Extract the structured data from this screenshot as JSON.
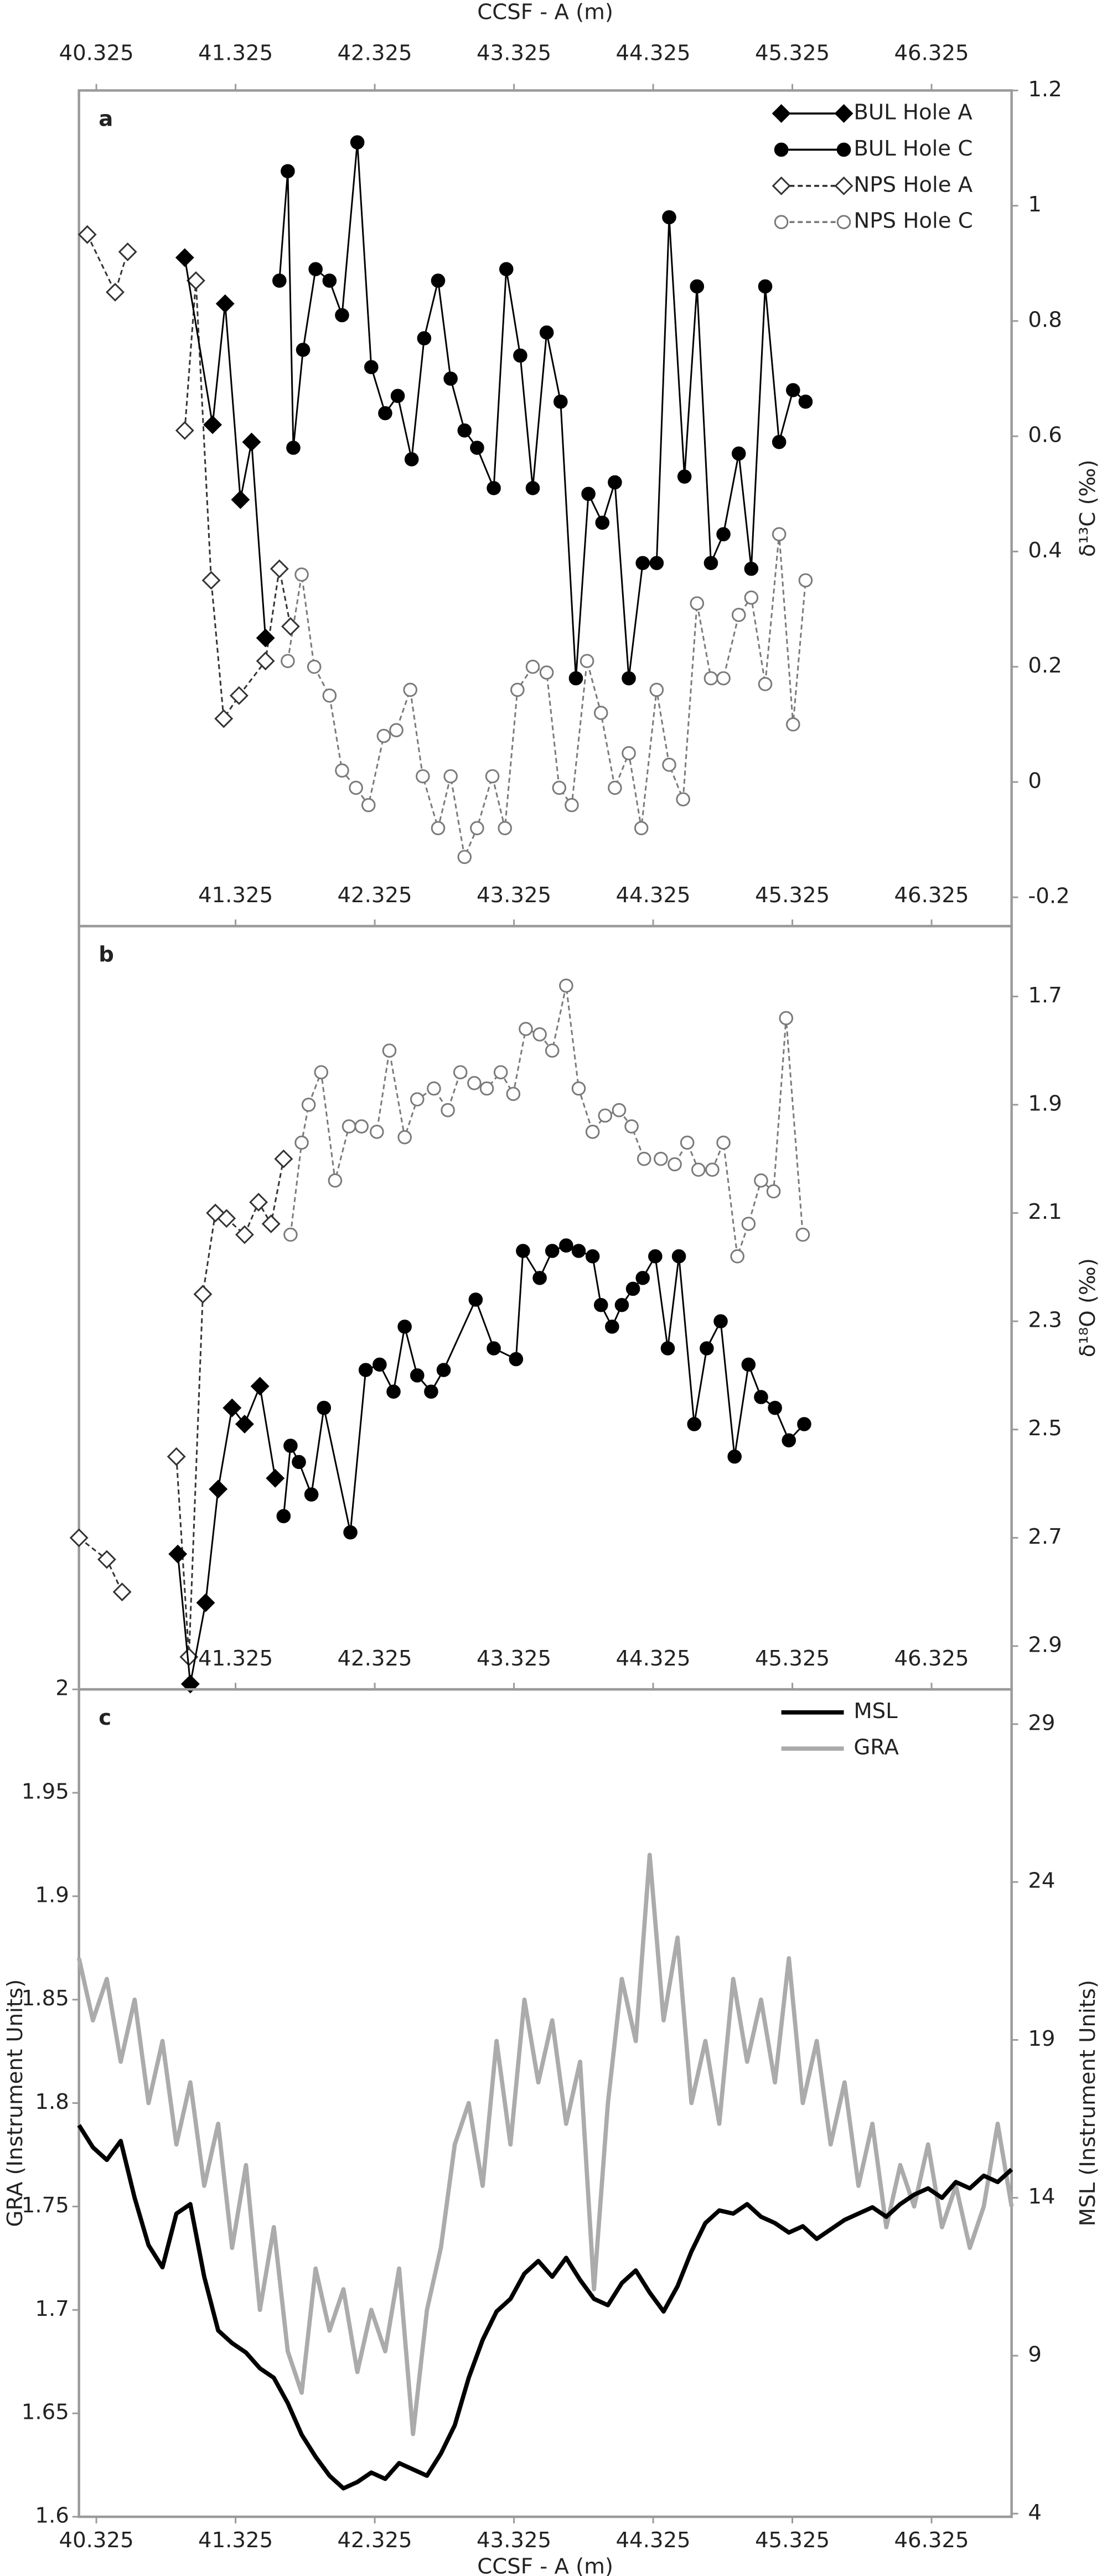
{
  "chart_data": [
    {
      "type": "line",
      "panel_label": "a",
      "x_label": "CCSF - A (m)",
      "x_side": "top",
      "y_label": "δ¹³C (‰)",
      "y_side": "right",
      "xlim": [
        40.2,
        46.9
      ],
      "ylim": [
        -0.25,
        1.2
      ],
      "xticks": [
        40.325,
        41.325,
        42.325,
        43.325,
        44.325,
        45.325,
        46.325
      ],
      "xticks_inner": [
        41.325,
        42.325,
        43.325,
        44.325,
        45.325,
        46.325
      ],
      "yticks": [
        -0.2,
        0,
        0.2,
        0.4,
        0.6,
        0.8,
        1,
        1.2
      ],
      "legend": "top-right",
      "series": [
        {
          "name": "BUL Hole A",
          "color": "#000000",
          "marker": "diamond",
          "filled": true,
          "dash": false,
          "x": [
            40.96,
            41.16,
            41.25,
            41.36,
            41.44,
            41.54
          ],
          "values": [
            0.91,
            0.62,
            0.83,
            0.49,
            0.59,
            0.25
          ]
        },
        {
          "name": "BUL Hole C",
          "color": "#000000",
          "marker": "circle",
          "filled": true,
          "dash": false,
          "x": [
            41.64,
            41.7,
            41.74,
            41.81,
            41.9,
            42.0,
            42.09,
            42.2,
            42.3,
            42.4,
            42.49,
            42.59,
            42.68,
            42.78,
            42.87,
            42.97,
            43.06,
            43.18,
            43.27,
            43.37,
            43.46,
            43.56,
            43.66,
            43.77,
            43.86,
            43.96,
            44.05,
            44.15,
            44.25,
            44.35,
            44.44,
            44.55,
            44.64,
            44.74,
            44.83,
            44.94,
            45.03,
            45.13,
            45.23,
            45.33,
            45.42
          ],
          "values": [
            0.87,
            1.06,
            0.58,
            0.75,
            0.89,
            0.87,
            0.81,
            1.11,
            0.72,
            0.64,
            0.67,
            0.56,
            0.77,
            0.87,
            0.7,
            0.61,
            0.58,
            0.51,
            0.89,
            0.74,
            0.51,
            0.78,
            0.66,
            0.18,
            0.5,
            0.45,
            0.52,
            0.18,
            0.38,
            0.38,
            0.98,
            0.53,
            0.86,
            0.38,
            0.43,
            0.57,
            0.37,
            0.86,
            0.59,
            0.68,
            0.66
          ]
        },
        {
          "name": "NPS Hole A",
          "color": "#333333",
          "marker": "diamond",
          "filled": false,
          "dash": true,
          "x": [
            40.26,
            40.46,
            40.55,
            null,
            40.96,
            41.04,
            41.15,
            41.24,
            41.35,
            41.54,
            41.64,
            41.72
          ],
          "values": [
            0.95,
            0.85,
            0.92,
            null,
            0.61,
            0.87,
            0.35,
            0.11,
            0.15,
            0.21,
            0.37,
            0.27
          ]
        },
        {
          "name": "NPS Hole C",
          "color": "#7a7a7a",
          "marker": "circle",
          "filled": false,
          "dash": true,
          "x": [
            41.7,
            41.8,
            41.89,
            42.0,
            42.09,
            42.19,
            42.28,
            42.39,
            42.48,
            42.58,
            42.67,
            42.78,
            42.87,
            42.97,
            43.06,
            43.17,
            43.26,
            43.35,
            43.46,
            43.56,
            43.65,
            43.74,
            43.85,
            43.95,
            44.05,
            44.15,
            44.24,
            44.35,
            44.44,
            44.54,
            44.64,
            44.74,
            44.83,
            44.94,
            45.03,
            45.13,
            45.23,
            45.33,
            45.42
          ],
          "values": [
            0.21,
            0.36,
            0.2,
            0.15,
            0.02,
            -0.01,
            -0.04,
            0.08,
            0.09,
            0.16,
            0.01,
            -0.08,
            0.01,
            -0.13,
            -0.08,
            0.01,
            -0.08,
            0.16,
            0.2,
            0.19,
            -0.01,
            -0.04,
            0.21,
            0.12,
            -0.01,
            0.05,
            -0.08,
            0.16,
            0.03,
            -0.03,
            0.31,
            0.18,
            0.18,
            0.29,
            0.32,
            0.17,
            0.43,
            0.1,
            0.35
          ]
        }
      ]
    },
    {
      "type": "line",
      "panel_label": "b",
      "y_label": "δ¹⁸O (‰)",
      "y_side": "right",
      "invert_y": true,
      "xlim": [
        40.2,
        46.9
      ],
      "ylim": [
        1.57,
        2.98
      ],
      "xticks_inner": [
        41.325,
        42.325,
        43.325,
        44.325,
        45.325,
        46.325
      ],
      "yticks": [
        1.7,
        1.9,
        2.1,
        2.3,
        2.5,
        2.7,
        2.9
      ],
      "series": [
        {
          "color": "#000000",
          "marker": "diamond",
          "filled": true,
          "dash": false,
          "x": [
            40.91,
            41.0,
            41.11,
            41.2,
            41.3,
            41.39,
            41.5,
            41.61
          ],
          "values": [
            2.73,
            2.97,
            2.82,
            2.61,
            2.46,
            2.49,
            2.42,
            2.59
          ]
        },
        {
          "color": "#000000",
          "marker": "circle",
          "filled": true,
          "dash": false,
          "x": [
            41.67,
            41.72,
            41.78,
            41.87,
            41.96,
            42.15,
            42.26,
            42.36,
            42.46,
            42.54,
            42.63,
            42.73,
            42.82,
            43.05,
            43.18,
            43.34,
            43.39,
            43.51,
            43.6,
            43.7,
            43.79,
            43.89,
            43.95,
            44.03,
            44.1,
            44.18,
            44.25,
            44.34,
            44.43,
            44.51,
            44.62,
            44.71,
            44.81,
            44.91,
            45.01,
            45.1,
            45.2,
            45.3,
            45.41
          ],
          "values": [
            2.66,
            2.53,
            2.56,
            2.62,
            2.46,
            2.69,
            2.39,
            2.38,
            2.43,
            2.31,
            2.4,
            2.43,
            2.39,
            2.26,
            2.35,
            2.37,
            2.17,
            2.22,
            2.17,
            2.16,
            2.17,
            2.18,
            2.27,
            2.31,
            2.27,
            2.24,
            2.22,
            2.18,
            2.35,
            2.18,
            2.49,
            2.35,
            2.3,
            2.55,
            2.38,
            2.44,
            2.46,
            2.52,
            2.49
          ]
        },
        {
          "color": "#333333",
          "marker": "diamond",
          "filled": false,
          "dash": true,
          "x": [
            40.2,
            40.4,
            40.51,
            null,
            40.9,
            40.99,
            41.09,
            41.18,
            41.26,
            41.39,
            41.49,
            41.58,
            41.67
          ],
          "values": [
            2.7,
            2.74,
            2.8,
            null,
            2.55,
            2.92,
            2.25,
            2.1,
            2.11,
            2.14,
            2.08,
            2.12,
            2.0
          ]
        },
        {
          "color": "#7a7a7a",
          "marker": "circle",
          "filled": false,
          "dash": true,
          "x": [
            41.72,
            41.8,
            41.85,
            41.94,
            42.04,
            42.14,
            42.23,
            42.34,
            42.43,
            42.54,
            42.63,
            42.75,
            42.85,
            42.94,
            43.04,
            43.13,
            43.23,
            43.32,
            43.41,
            43.51,
            43.6,
            43.7,
            43.79,
            43.89,
            43.98,
            44.08,
            44.17,
            44.26,
            null,
            44.38,
            44.48,
            44.57,
            44.65,
            44.75,
            44.83,
            44.93,
            45.01,
            45.1,
            45.19,
            45.28,
            45.4
          ],
          "values": [
            2.14,
            1.97,
            1.9,
            1.84,
            2.04,
            1.94,
            1.94,
            1.95,
            1.8,
            1.96,
            1.89,
            1.87,
            1.91,
            1.84,
            1.86,
            1.87,
            1.84,
            1.88,
            1.76,
            1.77,
            1.8,
            1.68,
            1.87,
            1.95,
            1.92,
            1.91,
            1.94,
            2.0,
            null,
            2.0,
            2.01,
            1.97,
            2.02,
            2.02,
            1.97,
            2.18,
            2.12,
            2.04,
            2.06,
            1.74,
            2.14
          ]
        }
      ]
    },
    {
      "type": "line",
      "panel_label": "c",
      "x_label": "CCSF - A (m)",
      "x_side": "bottom",
      "y_label": "GRA (Instrument Units)",
      "y_side": "left",
      "y2_label": "MSL (Instrument Units)",
      "xlim": [
        40.2,
        46.9
      ],
      "ylim": [
        1.6,
        2.0
      ],
      "y2lim": [
        3.9,
        30.1
      ],
      "xticks": [
        40.325,
        41.325,
        42.325,
        43.325,
        44.325,
        45.325,
        46.325
      ],
      "yticks": [
        1.6,
        1.65,
        1.7,
        1.75,
        1.8,
        1.85,
        1.9,
        1.95,
        2
      ],
      "y2ticks": [
        4,
        9,
        14,
        19,
        24,
        29
      ],
      "legend": "top-right",
      "x": [
        40.2,
        40.3,
        40.4,
        40.5,
        40.6,
        40.7,
        40.8,
        40.9,
        41.0,
        41.1,
        41.2,
        41.3,
        41.4,
        41.5,
        41.6,
        41.7,
        41.8,
        41.9,
        42.0,
        42.1,
        42.2,
        42.3,
        42.4,
        42.5,
        42.6,
        42.7,
        42.8,
        42.9,
        43.0,
        43.1,
        43.2,
        43.3,
        43.4,
        43.5,
        43.6,
        43.7,
        43.8,
        43.9,
        44.0,
        44.1,
        44.2,
        44.3,
        44.4,
        44.5,
        44.6,
        44.7,
        44.8,
        44.9,
        45.0,
        45.1,
        45.2,
        45.3,
        45.4,
        45.5,
        45.6,
        45.7,
        45.8,
        45.9,
        46.0,
        46.1,
        46.2,
        46.3,
        46.4,
        46.5,
        46.6,
        46.7,
        46.8,
        46.9
      ],
      "series": [
        {
          "name": "MSL",
          "color": "#000000",
          "axis": "y2",
          "values": [
            16.3,
            15.6,
            15.2,
            15.8,
            14.0,
            12.5,
            11.8,
            13.5,
            13.8,
            11.5,
            9.8,
            9.4,
            9.1,
            8.6,
            8.3,
            7.5,
            6.5,
            5.8,
            5.2,
            4.8,
            5.0,
            5.3,
            5.1,
            5.6,
            5.4,
            5.2,
            5.9,
            6.8,
            8.3,
            9.5,
            10.4,
            10.8,
            11.6,
            12.0,
            11.5,
            12.1,
            11.4,
            10.8,
            10.6,
            11.3,
            11.7,
            11.0,
            10.4,
            11.2,
            12.3,
            13.2,
            13.6,
            13.5,
            13.8,
            13.4,
            13.2,
            12.9,
            13.1,
            12.7,
            13.0,
            13.3,
            13.5,
            13.7,
            13.4,
            13.8,
            14.1,
            14.3,
            14.0,
            14.5,
            14.3,
            14.7,
            14.5,
            14.9
          ]
        },
        {
          "name": "GRA",
          "color": "#ababab",
          "values": [
            1.87,
            1.84,
            1.86,
            1.82,
            1.85,
            1.8,
            1.83,
            1.78,
            1.81,
            1.76,
            1.79,
            1.73,
            1.77,
            1.7,
            1.74,
            1.68,
            1.66,
            1.72,
            1.69,
            1.71,
            1.67,
            1.7,
            1.68,
            1.72,
            1.64,
            1.7,
            1.73,
            1.78,
            1.8,
            1.76,
            1.83,
            1.78,
            1.85,
            1.81,
            1.84,
            1.79,
            1.82,
            1.71,
            1.8,
            1.86,
            1.83,
            1.92,
            1.84,
            1.88,
            1.8,
            1.83,
            1.79,
            1.86,
            1.82,
            1.85,
            1.81,
            1.87,
            1.8,
            1.83,
            1.78,
            1.81,
            1.76,
            1.79,
            1.74,
            1.77,
            1.75,
            1.78,
            1.74,
            1.76,
            1.73,
            1.75,
            1.79,
            1.75
          ]
        }
      ]
    }
  ]
}
